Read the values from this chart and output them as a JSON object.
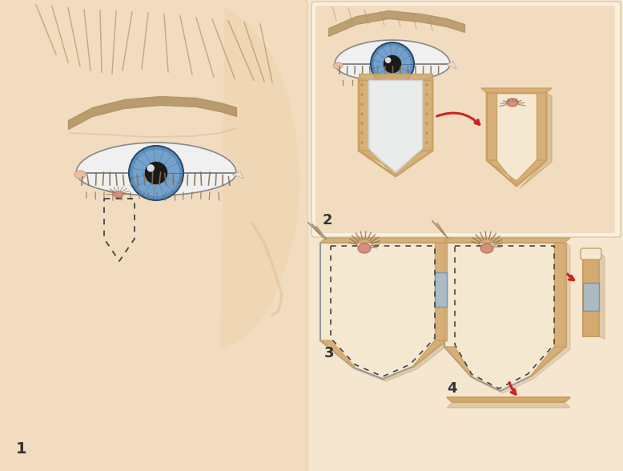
{
  "bg_color": "#f5e6d0",
  "skin_color": "#f2dcc0",
  "skin_dark": "#e8c99a",
  "skin_darker": "#d4aa7a",
  "eye_white": "#f0f0f0",
  "eye_blue_outer": "#5b8fbe",
  "eye_blue_inner": "#4a7aaa",
  "eye_blue_dark": "#2a4a6a",
  "pupil_color": "#1a1a1a",
  "iris_light": "#a8c8e8",
  "lash_color": "#8a7050",
  "brow_color": "#b09060",
  "tissue_color": "#f5e8d0",
  "tissue_border": "#c8a060",
  "dotted_color": "#444444",
  "red_arrow": "#cc2222",
  "margin_pattern": "#d4aa70",
  "panel_bg": "#faf0e0",
  "shadow_color": "#c8b090",
  "label_color": "#333333",
  "blue_strip": "#a0c0d8",
  "lesion_color": "#d4907a",
  "lesion_border": "#c07060",
  "white_cut": "#e8eef2"
}
